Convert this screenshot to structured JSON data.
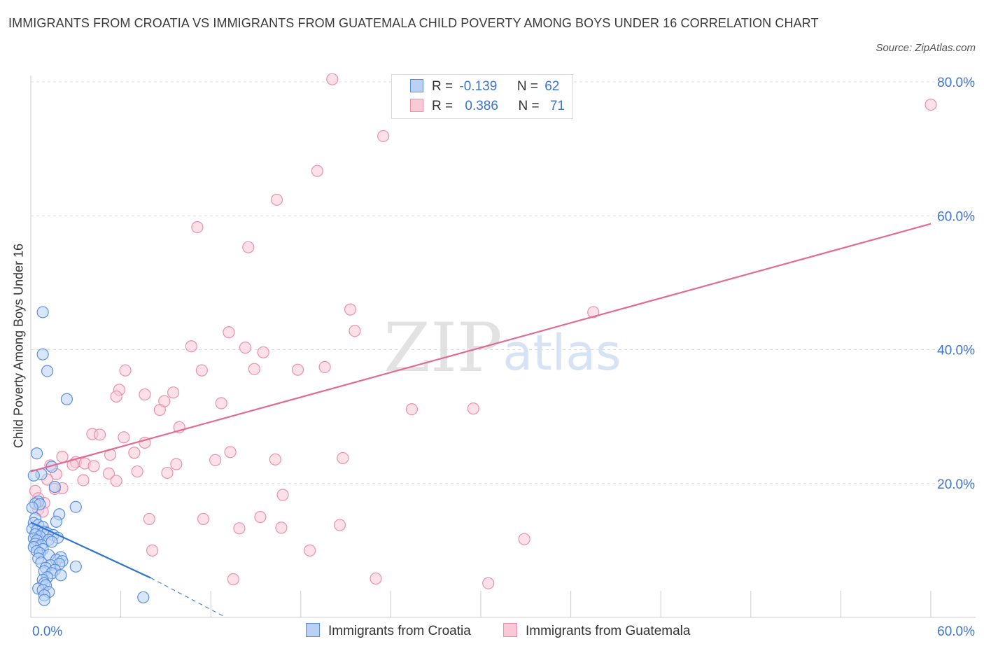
{
  "title": "IMMIGRANTS FROM CROATIA VS IMMIGRANTS FROM GUATEMALA CHILD POVERTY AMONG BOYS UNDER 16 CORRELATION CHART",
  "source": "Source: ZipAtlas.com",
  "watermark": {
    "zip": "ZIP",
    "atlas": "atlas"
  },
  "legend_stats": [
    {
      "r_label": "R =",
      "r_value": "-0.139",
      "n_label": "N =",
      "n_value": "62"
    },
    {
      "r_label": "R =",
      "r_value": "0.386",
      "n_label": "N =",
      "n_value": "71"
    }
  ],
  "colors": {
    "croatia_fill": "#b9d1f5",
    "croatia_stroke": "#5a8fde",
    "croatia_line": "#2f74d0",
    "guatemala_fill": "#f9c9d6",
    "guatemala_stroke": "#ea90ab",
    "guatemala_line": "#e26b93",
    "grid": "#dddddd",
    "tick_label": "#3b74d1"
  },
  "chart_data": {
    "type": "scatter",
    "title": "IMMIGRANTS FROM CROATIA VS IMMIGRANTS FROM GUATEMALA CHILD POVERTY AMONG BOYS UNDER 16 CORRELATION CHART",
    "xlabel": "",
    "ylabel": "Child Poverty Among Boys Under 16",
    "xlim": [
      0,
      60
    ],
    "ylim": [
      0,
      80
    ],
    "x_tick_labels": [
      "0.0%",
      "60.0%"
    ],
    "y_ticks": [
      20,
      40,
      60,
      80
    ],
    "y_tick_labels": [
      "20.0%",
      "40.0%",
      "60.0%",
      "80.0%"
    ],
    "grid": true,
    "legend_position": "bottom-center",
    "series": [
      {
        "name": "Immigrants from Croatia",
        "r": -0.139,
        "n": 62,
        "trend": {
          "x1": 0.0,
          "y1": 14.2,
          "x2": 8.0,
          "y2": 5.9,
          "dash_to_x": 13.0,
          "dash_to_y": 0.0
        },
        "points": [
          [
            0.8,
            45.6
          ],
          [
            0.8,
            39.3
          ],
          [
            1.1,
            36.8
          ],
          [
            2.4,
            32.6
          ],
          [
            0.4,
            24.5
          ],
          [
            1.4,
            22.5
          ],
          [
            0.7,
            21.4
          ],
          [
            0.2,
            21.2
          ],
          [
            1.6,
            19.5
          ],
          [
            0.5,
            17.3
          ],
          [
            0.3,
            17.0
          ],
          [
            0.6,
            16.9
          ],
          [
            0.1,
            16.4
          ],
          [
            3.0,
            16.5
          ],
          [
            1.9,
            15.4
          ],
          [
            0.3,
            14.8
          ],
          [
            0.2,
            14.1
          ],
          [
            1.7,
            14.3
          ],
          [
            0.5,
            13.8
          ],
          [
            0.8,
            13.5
          ],
          [
            0.1,
            13.2
          ],
          [
            0.4,
            13.0
          ],
          [
            0.9,
            12.8
          ],
          [
            1.1,
            12.6
          ],
          [
            0.3,
            12.4
          ],
          [
            1.5,
            12.3
          ],
          [
            0.6,
            12.1
          ],
          [
            0.2,
            11.8
          ],
          [
            1.2,
            11.6
          ],
          [
            1.8,
            11.9
          ],
          [
            0.4,
            11.5
          ],
          [
            1.4,
            11.3
          ],
          [
            0.3,
            11.0
          ],
          [
            0.7,
            10.8
          ],
          [
            0.2,
            10.5
          ],
          [
            0.8,
            10.2
          ],
          [
            0.4,
            9.9
          ],
          [
            0.6,
            9.6
          ],
          [
            1.2,
            9.3
          ],
          [
            2.0,
            9.0
          ],
          [
            0.5,
            8.8
          ],
          [
            1.7,
            8.6
          ],
          [
            2.1,
            8.4
          ],
          [
            0.7,
            8.2
          ],
          [
            1.9,
            8.0
          ],
          [
            1.3,
            7.8
          ],
          [
            3.0,
            7.6
          ],
          [
            1.0,
            7.4
          ],
          [
            1.6,
            7.1
          ],
          [
            0.9,
            6.9
          ],
          [
            1.4,
            6.6
          ],
          [
            2.0,
            6.3
          ],
          [
            1.1,
            6.0
          ],
          [
            0.8,
            5.6
          ],
          [
            0.9,
            5.1
          ],
          [
            1.0,
            4.8
          ],
          [
            0.5,
            4.3
          ],
          [
            0.8,
            4.1
          ],
          [
            1.2,
            3.8
          ],
          [
            0.9,
            3.3
          ],
          [
            7.5,
            3.0
          ],
          [
            0.9,
            2.6
          ]
        ]
      },
      {
        "name": "Immigrants from Guatemala",
        "r": 0.386,
        "n": 71,
        "trend": {
          "x1": 0.0,
          "y1": 21.8,
          "x2": 60.0,
          "y2": 58.8
        },
        "points": [
          [
            20.1,
            80.4
          ],
          [
            60.0,
            76.6
          ],
          [
            23.5,
            71.9
          ],
          [
            19.1,
            66.7
          ],
          [
            16.4,
            62.4
          ],
          [
            11.1,
            58.3
          ],
          [
            14.5,
            55.3
          ],
          [
            21.3,
            46.0
          ],
          [
            37.5,
            45.6
          ],
          [
            13.2,
            42.6
          ],
          [
            21.6,
            42.8
          ],
          [
            10.7,
            40.5
          ],
          [
            14.3,
            40.3
          ],
          [
            15.5,
            39.6
          ],
          [
            6.3,
            36.9
          ],
          [
            11.4,
            36.9
          ],
          [
            14.9,
            37.1
          ],
          [
            17.8,
            37.0
          ],
          [
            19.6,
            37.4
          ],
          [
            5.9,
            34.0
          ],
          [
            9.5,
            33.6
          ],
          [
            7.6,
            33.3
          ],
          [
            5.7,
            33.0
          ],
          [
            8.9,
            32.3
          ],
          [
            12.7,
            32.0
          ],
          [
            25.4,
            31.1
          ],
          [
            29.5,
            31.2
          ],
          [
            8.6,
            31.0
          ],
          [
            9.9,
            28.4
          ],
          [
            4.1,
            27.4
          ],
          [
            4.6,
            27.3
          ],
          [
            6.2,
            26.9
          ],
          [
            7.6,
            26.1
          ],
          [
            13.3,
            24.7
          ],
          [
            6.9,
            24.6
          ],
          [
            5.3,
            24.3
          ],
          [
            2.1,
            24.0
          ],
          [
            16.3,
            23.6
          ],
          [
            20.8,
            23.8
          ],
          [
            12.3,
            23.5
          ],
          [
            3.0,
            23.2
          ],
          [
            3.6,
            23.0
          ],
          [
            2.8,
            22.8
          ],
          [
            9.7,
            22.9
          ],
          [
            4.2,
            22.6
          ],
          [
            1.3,
            22.7
          ],
          [
            7.1,
            21.8
          ],
          [
            9.1,
            21.6
          ],
          [
            5.2,
            21.5
          ],
          [
            1.7,
            21.4
          ],
          [
            3.5,
            20.5
          ],
          [
            5.7,
            20.4
          ],
          [
            1.1,
            20.6
          ],
          [
            2.1,
            19.3
          ],
          [
            1.6,
            19.2
          ],
          [
            0.3,
            18.9
          ],
          [
            16.8,
            18.3
          ],
          [
            0.5,
            17.8
          ],
          [
            0.9,
            17.1
          ],
          [
            0.5,
            16.1
          ],
          [
            0.8,
            15.8
          ],
          [
            15.3,
            15.0
          ],
          [
            7.9,
            14.7
          ],
          [
            11.5,
            14.7
          ],
          [
            20.6,
            13.8
          ],
          [
            13.9,
            13.3
          ],
          [
            16.7,
            13.4
          ],
          [
            32.9,
            11.7
          ],
          [
            18.6,
            10.0
          ],
          [
            8.1,
            10.0
          ],
          [
            13.5,
            5.7
          ],
          [
            23.0,
            5.8
          ],
          [
            30.5,
            5.1
          ]
        ]
      }
    ]
  },
  "bottom_legend": [
    "Immigrants from Croatia",
    "Immigrants from Guatemala"
  ]
}
